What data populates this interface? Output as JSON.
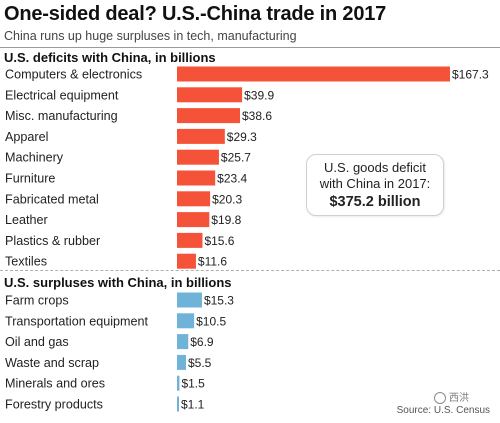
{
  "header": {
    "title": "One-sided deal? U.S.-China trade in 2017",
    "subtitle": "China runs up huge surpluses in tech, manufacturing"
  },
  "callout": {
    "line1": "U.S. goods deficit",
    "line2": "with China in 2017:",
    "value": "$375.2 billion"
  },
  "source": "Source: U.S. Census",
  "watermark": "西洪",
  "colors": {
    "deficit": "#f4533a",
    "surplus": "#6fb3d8"
  },
  "chart_data": [
    {
      "type": "bar",
      "orientation": "horizontal",
      "title": "U.S. deficits with China, in billions",
      "unit_prefix": "$",
      "categories": [
        "Computers & electronics",
        "Electrical equipment",
        "Misc. manufacturing",
        "Apparel",
        "Machinery",
        "Furniture",
        "Fabricated metal",
        "Leather",
        "Plastics & rubber",
        "Textiles"
      ],
      "values": [
        167.3,
        39.9,
        38.6,
        29.3,
        25.7,
        23.4,
        20.3,
        19.8,
        15.6,
        11.6
      ],
      "data_labels": [
        "$167.3",
        "$39.9",
        "$38.6",
        "$29.3",
        "$25.7",
        "$23.4",
        "$20.3",
        "$19.8",
        "$15.6",
        "$11.6"
      ],
      "xlim": [
        0,
        167.3
      ],
      "grid": false,
      "legend": "none"
    },
    {
      "type": "bar",
      "orientation": "horizontal",
      "title": "U.S. surpluses with China, in billions",
      "unit_prefix": "$",
      "categories": [
        "Farm crops",
        "Transportation equipment",
        "Oil and gas",
        "Waste and scrap",
        "Minerals and ores",
        "Forestry products"
      ],
      "values": [
        15.3,
        10.5,
        6.9,
        5.5,
        1.5,
        1.1
      ],
      "data_labels": [
        "$15.3",
        "$10.5",
        "$6.9",
        "$5.5",
        "$1.5",
        "$1.1"
      ],
      "xlim": [
        0,
        167.3
      ],
      "grid": false,
      "legend": "none"
    }
  ]
}
